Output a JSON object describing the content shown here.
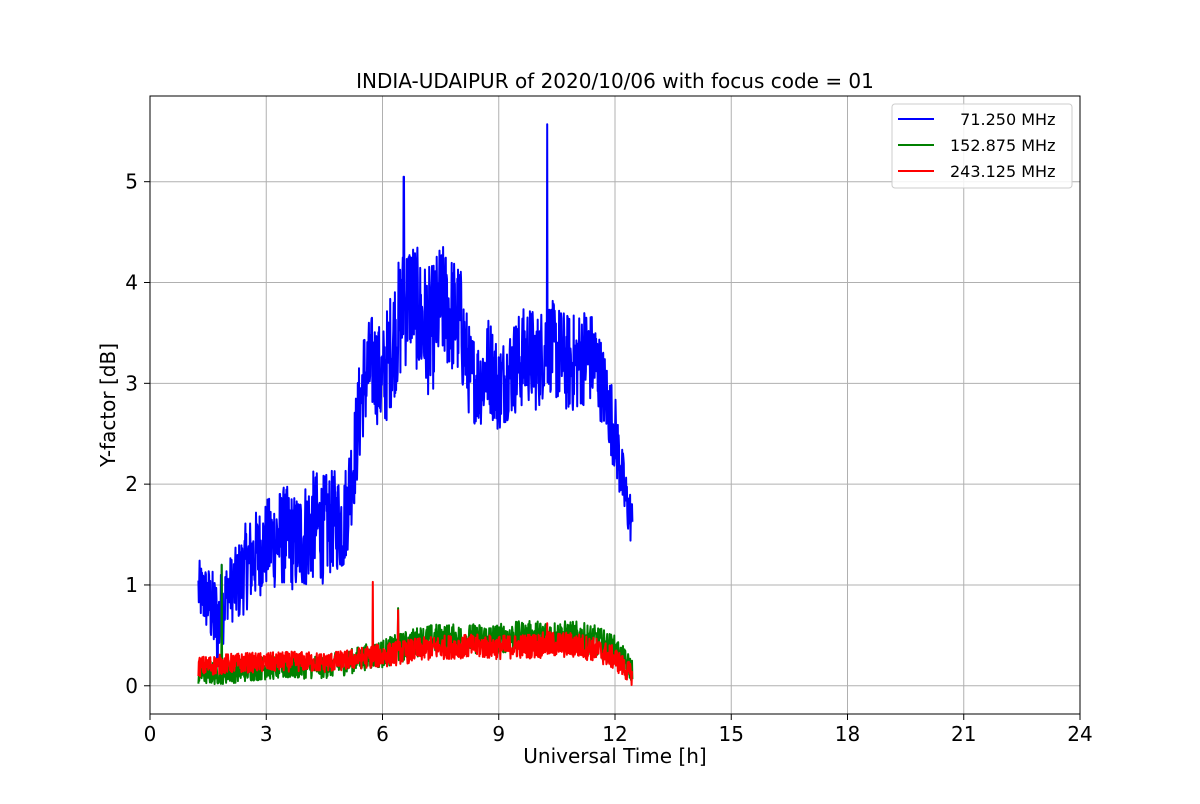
{
  "chart_data": {
    "type": "line",
    "title": "INDIA-UDAIPUR of 2020/10/06 with focus code = 01",
    "xlabel": "Universal Time [h]",
    "ylabel": "Y-factor [dB]",
    "xlim": [
      0,
      24
    ],
    "ylim": [
      -0.28,
      5.85
    ],
    "xticks": [
      0,
      3,
      6,
      9,
      12,
      15,
      18,
      21,
      24
    ],
    "yticks": [
      0,
      1,
      2,
      3,
      4,
      5
    ],
    "grid": true,
    "legend_position": "top-right",
    "series": [
      {
        "name": "71.250 MHz",
        "legend_label": "  71.250 MHz",
        "color": "#0000ff",
        "x": [
          1.25,
          1.5,
          1.75,
          2.0,
          2.25,
          2.5,
          2.75,
          3.0,
          3.25,
          3.5,
          3.75,
          4.0,
          4.25,
          4.5,
          4.75,
          5.0,
          5.25,
          5.5,
          5.75,
          6.0,
          6.25,
          6.5,
          6.75,
          7.0,
          7.25,
          7.5,
          7.75,
          8.0,
          8.25,
          8.5,
          8.75,
          9.0,
          9.25,
          9.5,
          9.75,
          10.0,
          10.25,
          10.5,
          10.75,
          11.0,
          11.25,
          11.5,
          11.75,
          12.0,
          12.25,
          12.45
        ],
        "y": [
          0.95,
          0.85,
          0.6,
          0.95,
          1.0,
          1.2,
          1.3,
          1.4,
          1.45,
          1.5,
          1.4,
          1.5,
          1.6,
          1.55,
          1.65,
          1.6,
          2.2,
          3.0,
          3.2,
          3.0,
          3.4,
          3.7,
          3.9,
          3.6,
          3.5,
          3.8,
          3.7,
          3.6,
          3.1,
          3.0,
          3.2,
          2.95,
          3.1,
          3.2,
          3.3,
          3.2,
          3.4,
          3.3,
          3.2,
          3.2,
          3.3,
          3.2,
          2.9,
          2.5,
          1.9,
          1.6
        ],
        "band": [
          0.3,
          0.35,
          0.5,
          0.3,
          0.4,
          0.45,
          0.45,
          0.45,
          0.5,
          0.5,
          0.5,
          0.55,
          0.55,
          0.55,
          0.5,
          0.5,
          0.5,
          0.55,
          0.5,
          0.55,
          0.6,
          0.65,
          0.6,
          0.65,
          0.65,
          0.6,
          0.6,
          0.6,
          0.45,
          0.45,
          0.5,
          0.45,
          0.45,
          0.5,
          0.5,
          0.5,
          0.45,
          0.5,
          0.5,
          0.5,
          0.5,
          0.45,
          0.4,
          0.4,
          0.3,
          0.25
        ],
        "spikes": [
          [
            1.85,
            1.2
          ],
          [
            6.55,
            5.05
          ],
          [
            10.25,
            5.57
          ]
        ]
      },
      {
        "name": "152.875 MHz",
        "legend_label": "152.875 MHz",
        "color": "#008000",
        "x": [
          1.25,
          1.5,
          1.75,
          2.0,
          2.5,
          3.0,
          3.5,
          4.0,
          4.5,
          5.0,
          5.5,
          6.0,
          6.5,
          7.0,
          7.5,
          8.0,
          8.5,
          9.0,
          9.5,
          10.0,
          10.5,
          11.0,
          11.5,
          12.0,
          12.45
        ],
        "y": [
          0.12,
          0.13,
          0.13,
          0.14,
          0.16,
          0.18,
          0.18,
          0.19,
          0.19,
          0.22,
          0.28,
          0.32,
          0.38,
          0.45,
          0.47,
          0.46,
          0.47,
          0.47,
          0.49,
          0.5,
          0.5,
          0.49,
          0.45,
          0.35,
          0.15
        ],
        "band": [
          0.12,
          0.12,
          0.12,
          0.12,
          0.12,
          0.12,
          0.12,
          0.12,
          0.12,
          0.12,
          0.13,
          0.14,
          0.15,
          0.15,
          0.15,
          0.15,
          0.15,
          0.15,
          0.15,
          0.15,
          0.15,
          0.15,
          0.15,
          0.15,
          0.12
        ],
        "spikes": [
          [
            1.85,
            1.2
          ],
          [
            6.4,
            0.77
          ]
        ]
      },
      {
        "name": "243.125 MHz",
        "legend_label": "243.125 MHz",
        "color": "#ff0000",
        "x": [
          1.25,
          1.5,
          1.75,
          2.0,
          2.5,
          3.0,
          3.5,
          4.0,
          4.5,
          5.0,
          5.5,
          6.0,
          6.5,
          7.0,
          7.5,
          8.0,
          8.5,
          9.0,
          9.5,
          10.0,
          10.5,
          11.0,
          11.5,
          12.0,
          12.45
        ],
        "y": [
          0.19,
          0.2,
          0.21,
          0.22,
          0.23,
          0.23,
          0.24,
          0.24,
          0.23,
          0.25,
          0.28,
          0.3,
          0.33,
          0.36,
          0.38,
          0.39,
          0.39,
          0.38,
          0.39,
          0.4,
          0.41,
          0.4,
          0.36,
          0.27,
          0.1
        ],
        "band": [
          0.1,
          0.1,
          0.1,
          0.1,
          0.1,
          0.1,
          0.1,
          0.1,
          0.1,
          0.1,
          0.11,
          0.12,
          0.12,
          0.12,
          0.12,
          0.12,
          0.12,
          0.12,
          0.12,
          0.13,
          0.13,
          0.13,
          0.12,
          0.12,
          0.1
        ],
        "spikes": [
          [
            5.75,
            1.03
          ],
          [
            6.4,
            0.75
          ],
          [
            10.25,
            0.62
          ]
        ]
      }
    ]
  }
}
